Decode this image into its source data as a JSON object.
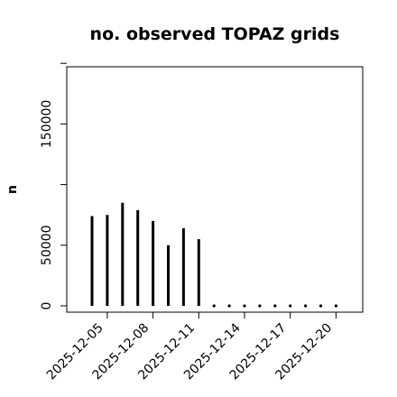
{
  "chart_data": {
    "type": "bar",
    "title": "no. observed TOPAZ grids",
    "xlabel": "",
    "ylabel": "n",
    "ylim": [
      0,
      200000
    ],
    "yticks": [
      0,
      50000,
      150000
    ],
    "x": [
      "2025-12-04",
      "2025-12-05",
      "2025-12-06",
      "2025-12-07",
      "2025-12-08",
      "2025-12-09",
      "2025-12-10",
      "2025-12-11",
      "2025-12-12",
      "2025-12-13",
      "2025-12-14",
      "2025-12-15",
      "2025-12-16",
      "2025-12-17",
      "2025-12-18",
      "2025-12-19",
      "2025-12-20"
    ],
    "values": [
      74000,
      75000,
      85000,
      79000,
      70000,
      50000,
      64000,
      55000,
      0,
      0,
      0,
      0,
      0,
      0,
      0,
      0,
      0
    ],
    "xtick_labels": [
      "2025-12-05",
      "2025-12-08",
      "2025-12-11",
      "2025-12-14",
      "2025-12-17",
      "2025-12-20"
    ],
    "highlight_label": "2025-12-11",
    "colors": {
      "bars": "#000000",
      "highlight": "#228B22"
    },
    "grid": false,
    "legend": "none"
  }
}
